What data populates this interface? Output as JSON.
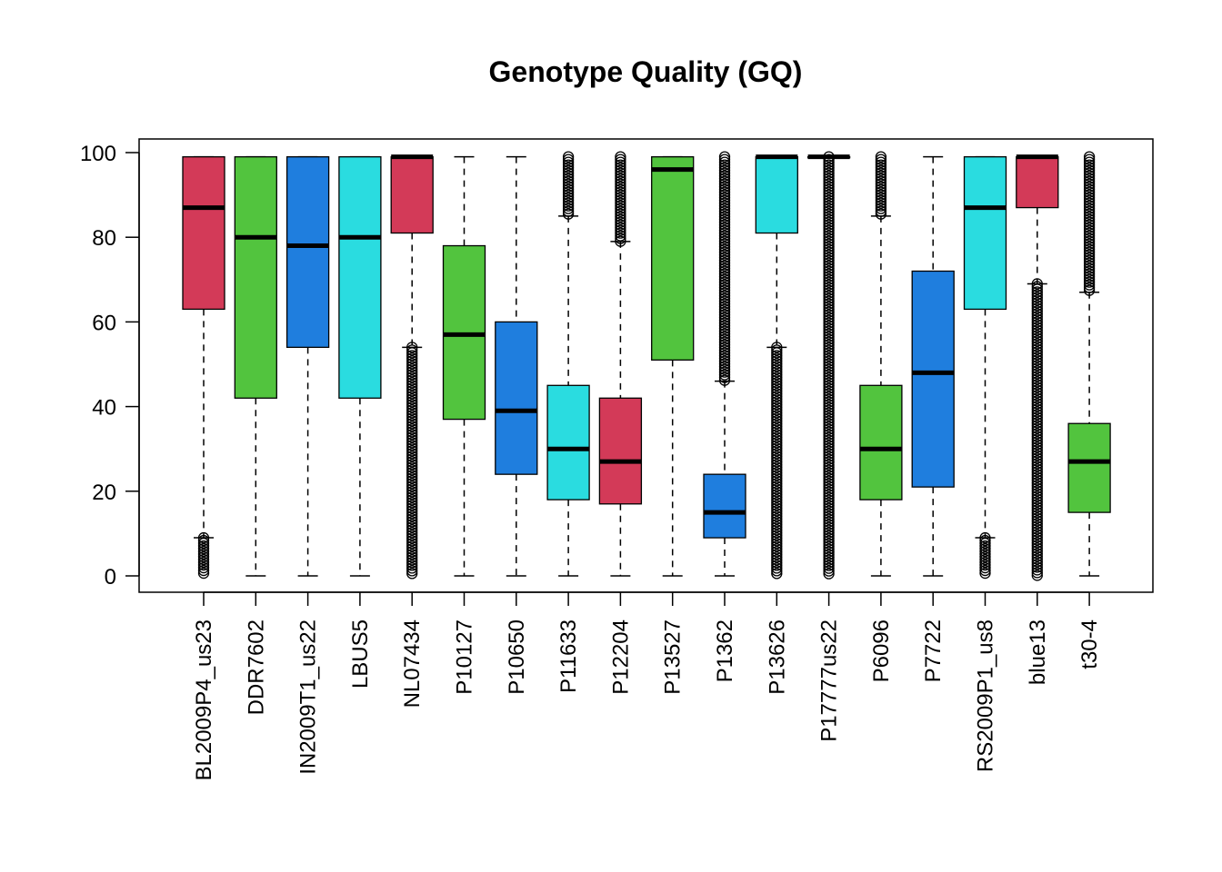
{
  "chart_data": {
    "type": "boxplot",
    "title": "Genotype Quality (GQ)",
    "xlabel": "",
    "ylabel": "",
    "ylim": [
      0,
      100
    ],
    "yticks": [
      0,
      20,
      40,
      60,
      80,
      100
    ],
    "colors": {
      "red": "#D33A58",
      "green": "#52C43E",
      "blue": "#1F7EDE",
      "cyan": "#2ADCE0"
    },
    "boxes": [
      {
        "label": "BL2009P4_us23",
        "color": "red",
        "whisker_low": 9,
        "q1": 63,
        "median": 87,
        "q3": 99,
        "whisker_high": 99,
        "outliers_low": [
          0,
          9
        ],
        "outliers_high": null
      },
      {
        "label": "DDR7602",
        "color": "green",
        "whisker_low": 0,
        "q1": 42,
        "median": 80,
        "q3": 99,
        "whisker_high": 99,
        "outliers_low": null,
        "outliers_high": null
      },
      {
        "label": "IN2009T1_us22",
        "color": "blue",
        "whisker_low": 0,
        "q1": 54,
        "median": 78,
        "q3": 99,
        "whisker_high": 99,
        "outliers_low": null,
        "outliers_high": null
      },
      {
        "label": "LBUS5",
        "color": "cyan",
        "whisker_low": 0,
        "q1": 42,
        "median": 80,
        "q3": 99,
        "whisker_high": 99,
        "outliers_low": null,
        "outliers_high": null
      },
      {
        "label": "NL07434",
        "color": "red",
        "whisker_low": 54,
        "q1": 81,
        "median": 99,
        "q3": 99,
        "whisker_high": 99,
        "outliers_low": [
          0,
          54
        ],
        "outliers_high": null
      },
      {
        "label": "P10127",
        "color": "green",
        "whisker_low": 0,
        "q1": 37,
        "median": 57,
        "q3": 78,
        "whisker_high": 99,
        "outliers_low": null,
        "outliers_high": null
      },
      {
        "label": "P10650",
        "color": "blue",
        "whisker_low": 0,
        "q1": 24,
        "median": 39,
        "q3": 60,
        "whisker_high": 99,
        "outliers_low": null,
        "outliers_high": null
      },
      {
        "label": "P11633",
        "color": "cyan",
        "whisker_low": 0,
        "q1": 18,
        "median": 30,
        "q3": 45,
        "whisker_high": 85,
        "outliers_low": null,
        "outliers_high": [
          85,
          99
        ]
      },
      {
        "label": "P12204",
        "color": "red",
        "whisker_low": 0,
        "q1": 17,
        "median": 27,
        "q3": 42,
        "whisker_high": 79,
        "outliers_low": null,
        "outliers_high": [
          79,
          99
        ]
      },
      {
        "label": "P13527",
        "color": "green",
        "whisker_low": 0,
        "q1": 51,
        "median": 96,
        "q3": 99,
        "whisker_high": 99,
        "outliers_low": null,
        "outliers_high": null
      },
      {
        "label": "P1362",
        "color": "blue",
        "whisker_low": 0,
        "q1": 9,
        "median": 15,
        "q3": 24,
        "whisker_high": 46,
        "outliers_low": null,
        "outliers_high": [
          46,
          99
        ]
      },
      {
        "label": "P13626",
        "color": "cyan",
        "whisker_low": 54,
        "q1": 81,
        "median": 99,
        "q3": 99,
        "whisker_high": 99,
        "outliers_low": [
          0,
          54
        ],
        "outliers_high": null
      },
      {
        "label": "P17777us22",
        "color": "red",
        "whisker_low": 99,
        "q1": 99,
        "median": 99,
        "q3": 99,
        "whisker_high": 99,
        "outliers_low": [
          0,
          99
        ],
        "outliers_high": null
      },
      {
        "label": "P6096",
        "color": "green",
        "whisker_low": 0,
        "q1": 18,
        "median": 30,
        "q3": 45,
        "whisker_high": 85,
        "outliers_low": null,
        "outliers_high": [
          85,
          99
        ]
      },
      {
        "label": "P7722",
        "color": "blue",
        "whisker_low": 0,
        "q1": 21,
        "median": 48,
        "q3": 72,
        "whisker_high": 99,
        "outliers_low": null,
        "outliers_high": null
      },
      {
        "label": "RS2009P1_us8",
        "color": "cyan",
        "whisker_low": 9,
        "q1": 63,
        "median": 87,
        "q3": 99,
        "whisker_high": 99,
        "outliers_low": [
          0,
          9
        ],
        "outliers_high": null
      },
      {
        "label": "blue13",
        "color": "red",
        "whisker_low": 69,
        "q1": 87,
        "median": 99,
        "q3": 99,
        "whisker_high": 99,
        "outliers_low": [
          0,
          69
        ],
        "outliers_high": null
      },
      {
        "label": "t30-4",
        "color": "green",
        "whisker_low": 0,
        "q1": 15,
        "median": 27,
        "q3": 36,
        "whisker_high": 67,
        "outliers_low": null,
        "outliers_high": [
          67,
          99
        ]
      }
    ]
  }
}
